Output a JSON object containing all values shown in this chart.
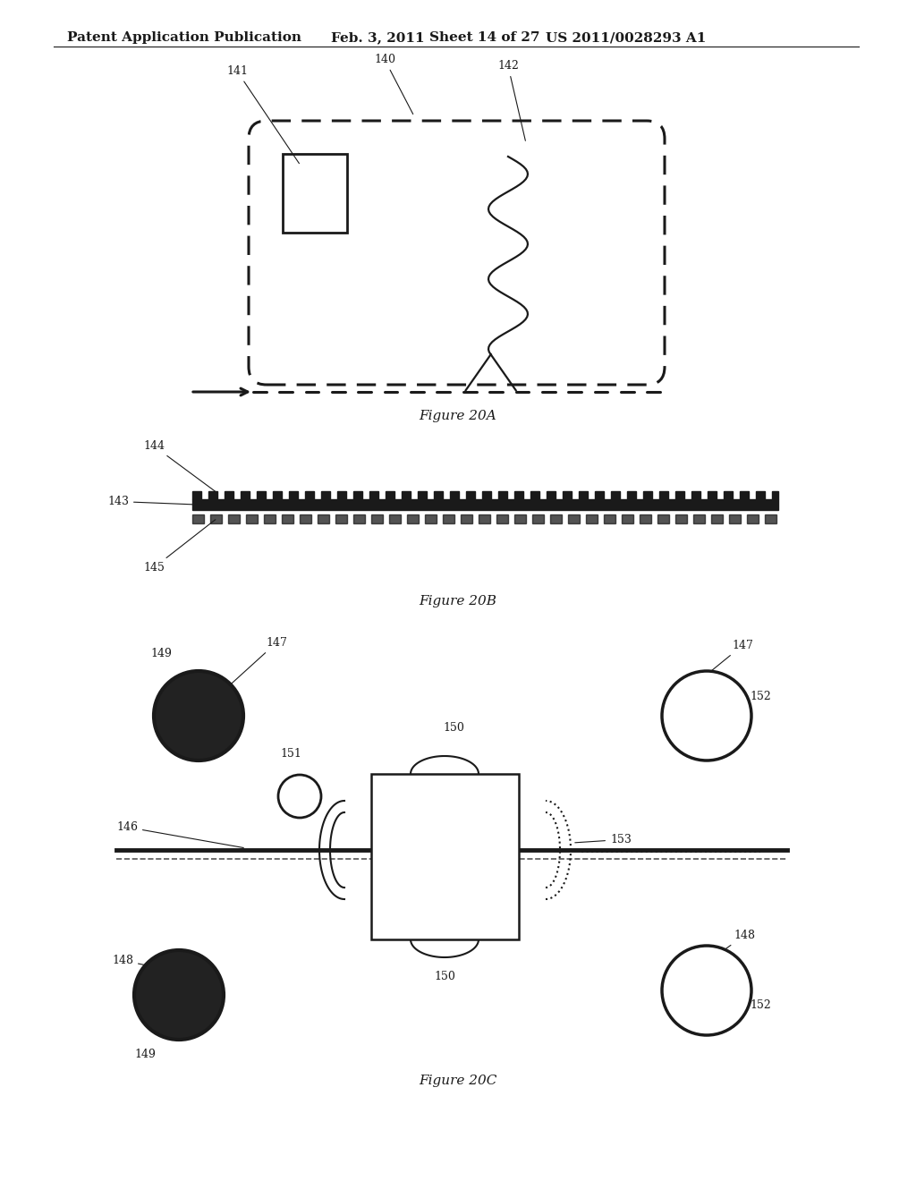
{
  "bg_color": "#ffffff",
  "header_text": "Patent Application Publication",
  "header_date": "Feb. 3, 2011",
  "header_sheet": "Sheet 14 of 27",
  "header_patent": "US 2011/0028293 A1",
  "fig20a_label": "Figure 20A",
  "fig20b_label": "Figure 20B",
  "fig20c_label": "Figure 20C",
  "text_color": "#1a1a1a"
}
